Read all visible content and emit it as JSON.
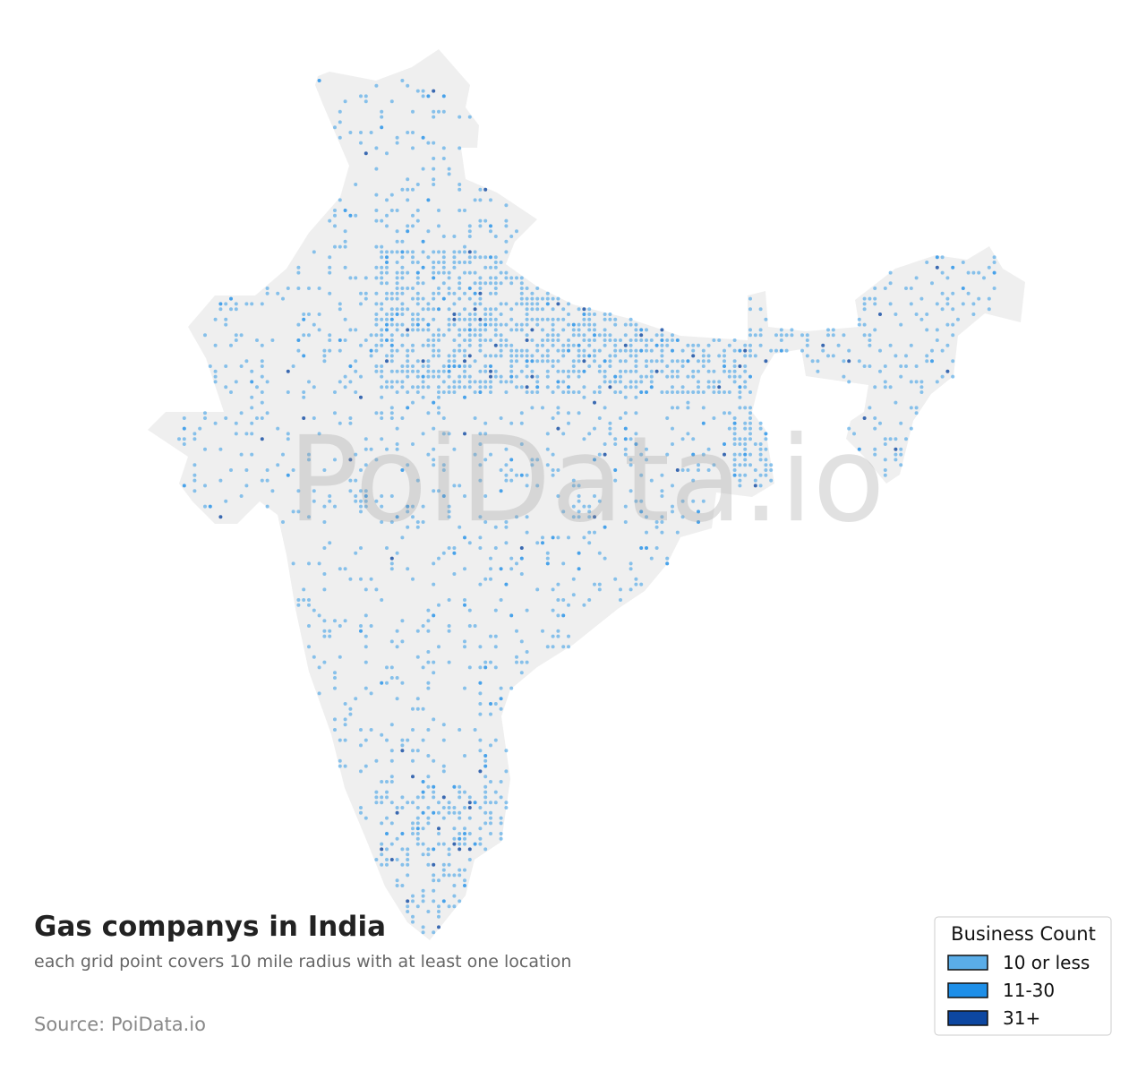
{
  "watermark": "PoiData.io",
  "title": "Gas companys in India",
  "subtitle": "each grid point covers 10 mile radius with at least one location",
  "source": "Source: PoiData.io",
  "legend": {
    "title": "Business Count",
    "items": [
      {
        "label": "10 or less",
        "color": "#5aade8"
      },
      {
        "label": "11-30",
        "color": "#1e8fe8"
      },
      {
        "label": "31+",
        "color": "#0d47a1"
      }
    ]
  }
}
